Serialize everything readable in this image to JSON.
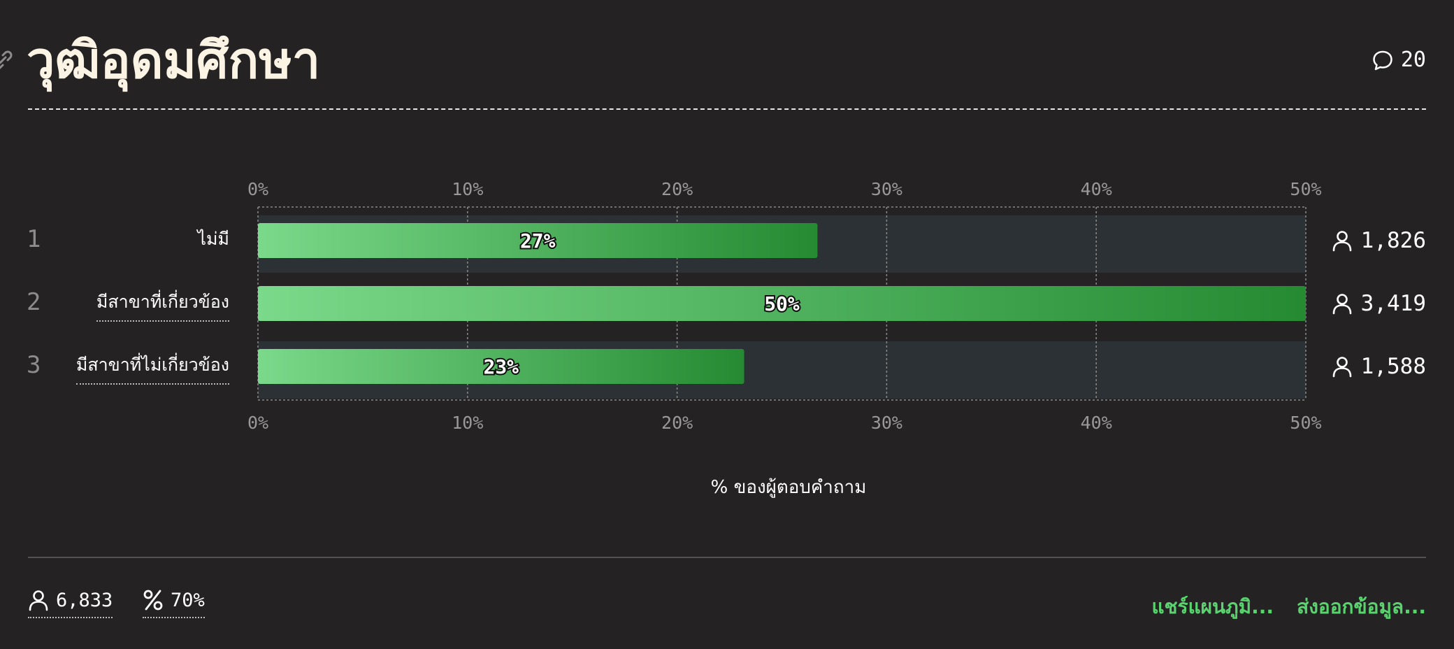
{
  "title": "วุฒิอุดมศึกษา",
  "comments": {
    "icon": "comment-icon",
    "count": "20"
  },
  "chart_data": {
    "type": "bar",
    "orientation": "horizontal",
    "categories": [
      "ไม่มี",
      "มีสาขาที่เกี่ยวข้อง",
      "มีสาขาที่ไม่เกี่ยวข้อง"
    ],
    "ranks": [
      "1",
      "2",
      "3"
    ],
    "values": [
      26.7,
      50.0,
      23.2
    ],
    "value_labels": [
      "27%",
      "50%",
      "23%"
    ],
    "counts": [
      "1,826",
      "3,419",
      "1,588"
    ],
    "xlim": [
      0,
      50
    ],
    "ticks": [
      "0%",
      "10%",
      "20%",
      "30%",
      "40%",
      "50%"
    ],
    "xlabel": "% ของผู้ตอบคำถาม",
    "grid": true,
    "colors": {
      "bar_start": "#7ad98a",
      "bar_end": "#258a32",
      "track": "#2b3135"
    }
  },
  "footer": {
    "respondents": "6,833",
    "response_rate": "70%",
    "share_label": "แชร์แผนภูมิ...",
    "export_label": "ส่งออกข้อมูล..."
  }
}
